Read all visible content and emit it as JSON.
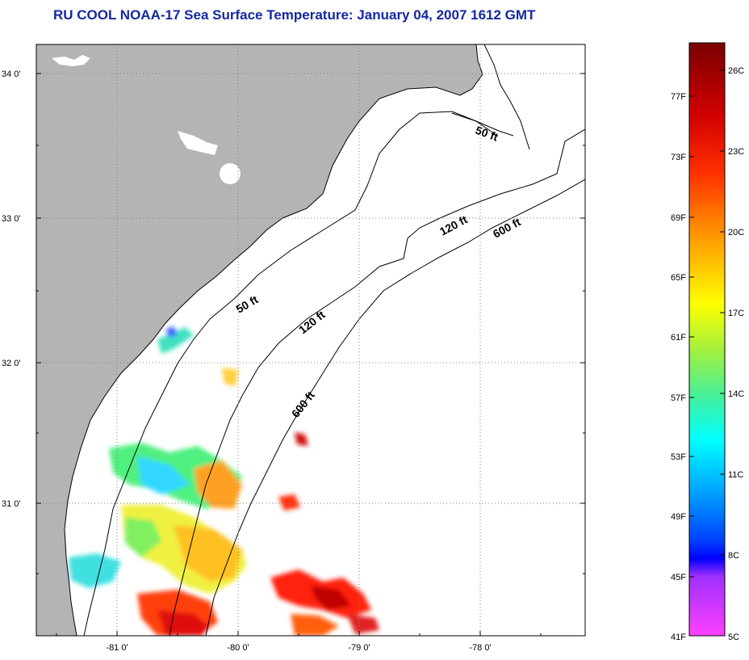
{
  "title": "RU COOL  NOAA-17  Sea Surface Temperature:  January 04, 2007 1612 GMT",
  "map": {
    "lat_labels": [
      "34 0'",
      "33 0'",
      "32 0'",
      "31 0'"
    ],
    "lon_labels": [
      "-81 0'",
      "-80 0'",
      "-79 0'",
      "-78 0'"
    ],
    "contours": [
      {
        "label": "50 ft",
        "name": "contour-label-50ft-north"
      },
      {
        "label": "50 ft",
        "name": "contour-label-50ft-south"
      },
      {
        "label": "120 ft",
        "name": "contour-label-120ft-north"
      },
      {
        "label": "120 ft",
        "name": "contour-label-120ft-south"
      },
      {
        "label": "600 ft",
        "name": "contour-label-600ft-north"
      },
      {
        "label": "600 ft",
        "name": "contour-label-600ft-south"
      }
    ],
    "colors": {
      "land": "#b4b4b4",
      "ocean": "#ffffff",
      "grid": "#808080"
    }
  },
  "colorbar": {
    "fahrenheit_labels": [
      "77F",
      "73F",
      "69F",
      "65F",
      "61F",
      "57F",
      "53F",
      "49F",
      "45F",
      "41F"
    ],
    "celsius_labels": [
      "26C",
      "23C",
      "20C",
      "17C",
      "14C",
      "11C",
      "8C",
      "5C"
    ],
    "colors_top_to_bottom": [
      "#7a0000",
      "#d00000",
      "#ff3000",
      "#ff8000",
      "#ffc800",
      "#ffff00",
      "#a0f040",
      "#40f0a0",
      "#00ffff",
      "#00a0ff",
      "#0040ff",
      "#0000ff",
      "#a030ff",
      "#ff40ff"
    ]
  }
}
